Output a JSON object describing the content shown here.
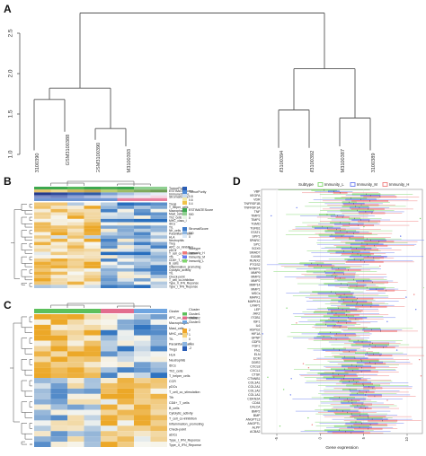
{
  "panels": {
    "a": {
      "label": "A"
    },
    "b": {
      "label": "B"
    },
    "c": {
      "label": "C"
    },
    "d": {
      "label": "D"
    }
  },
  "dendrogram": {
    "y_ticks": [
      "1.0",
      "1.5",
      "2.0",
      "2.5"
    ],
    "leaves": [
      "GSM3100390",
      "GSM3100388",
      "GSM3100390",
      "GSM3100393",
      "GSM3100394",
      "GSM3100392",
      "GSM3100387",
      "GSM3100389"
    ]
  },
  "heatmap_b": {
    "rows": [
      "TumorPurity",
      "ESTIMATEScore",
      "ImmuneScore",
      "StromalScore",
      "Tregs",
      "T_helper_cells",
      "Macrophages",
      "Mast_cells",
      "Th2_cells",
      "MHC_class_I",
      "iDCs",
      "TIL",
      "NK_cells",
      "Parainflammation",
      "HLA",
      "Neutrophils",
      "Treg",
      "APC_co_inhibition",
      "pDCs",
      "T_cell_co_stimulation",
      "Tfh",
      "CD8+_T_cells",
      "B_cells",
      "Inflammation_promoting",
      "Cytolytic_activity",
      "TIL",
      "Check-point",
      "T_cell_co-inhibition",
      "Type_II_IFN_Reponse",
      "Type_I_IFN_Reponse"
    ],
    "legend": {
      "scale_title": "TumorPurity",
      "scale_ticks": [
        "0.8",
        "0.6",
        "0.4"
      ],
      "cat1_title": "ESTIMATEScore",
      "cat1_ticks": [
        "500",
        "0"
      ],
      "cat2_title": "StromalScore",
      "cat2_ticks": [
        "500",
        "0"
      ],
      "subtype_title": "Subtype",
      "subtype_items": [
        "Immunity_H",
        "Immunity_M",
        "Immunity_L"
      ]
    }
  },
  "heatmap_c": {
    "rows": [
      "Cluster",
      "APC_co_stimulation",
      "Macrophages",
      "Mast_cells",
      "MHC_class_I",
      "TIL",
      "Parainflammation",
      "Tregs",
      "HLA",
      "Neutrophils",
      "iDCs",
      "Th2_cells",
      "T_helper_cells",
      "CCR",
      "pDCs",
      "T_cell_co_stimulation",
      "Tfh",
      "CD8+_T_cells",
      "B_cells",
      "Cytolytic_activity",
      "T_cell_co-inhibition",
      "Inflammation_promoting",
      "Check-point",
      "aDCs",
      "Type_I_IFN_Reponse",
      "Type_II_IFN_Reponse"
    ],
    "legend": {
      "cluster_title": "Cluster",
      "cluster_items": [
        "Cluster1",
        "Cluster2",
        "Cluster3"
      ],
      "scale_ticks": [
        "2",
        "1",
        "0",
        "-1",
        "-2"
      ]
    }
  },
  "boxplot": {
    "legend_title": "Subtype",
    "subtypes": [
      "Immunity_L",
      "Immunity_M",
      "Immunity_H"
    ],
    "colors": [
      "#7fd66c",
      "#6a7cf0",
      "#f07a7a"
    ],
    "xlabel": "Gene expression",
    "x_ticks": [
      "-5",
      "0",
      "5",
      "10"
    ],
    "genes": [
      "VBP",
      "VEGFA",
      "VDR",
      "TNFRSF1B",
      "TNFRSF1A",
      "TNF",
      "TIMP2",
      "TIMP1",
      "TGMD",
      "TGFB1",
      "STAT1",
      "SPP1",
      "SPARC",
      "SPC",
      "SOX9",
      "SMAD7",
      "S100B",
      "RUNX2",
      "PTGS2",
      "NXNIP1",
      "MMP9",
      "MMP3",
      "MMP2",
      "MMP14",
      "MMP1",
      "MSCs",
      "MAPK1",
      "MAPK14",
      "LRAP1",
      "LEP",
      "JAK2",
      "ITGB1",
      "IGF1",
      "IL6",
      "HSPG2",
      "HIF1A",
      "GPNP",
      "GDF5",
      "FGF1",
      "FN1",
      "ELN",
      "ECM",
      "DDR2",
      "CXCL8",
      "CXCL1",
      "CTSK",
      "CTNNB1",
      "COL3A1",
      "COL2A1",
      "COL1A2",
      "COL1A1",
      "CDKN2A",
      "CD44",
      "CALCA",
      "BMP2",
      "BMP",
      "ANGPTL3",
      "ANGPTL",
      "ALPP",
      "ACBA2"
    ]
  }
}
